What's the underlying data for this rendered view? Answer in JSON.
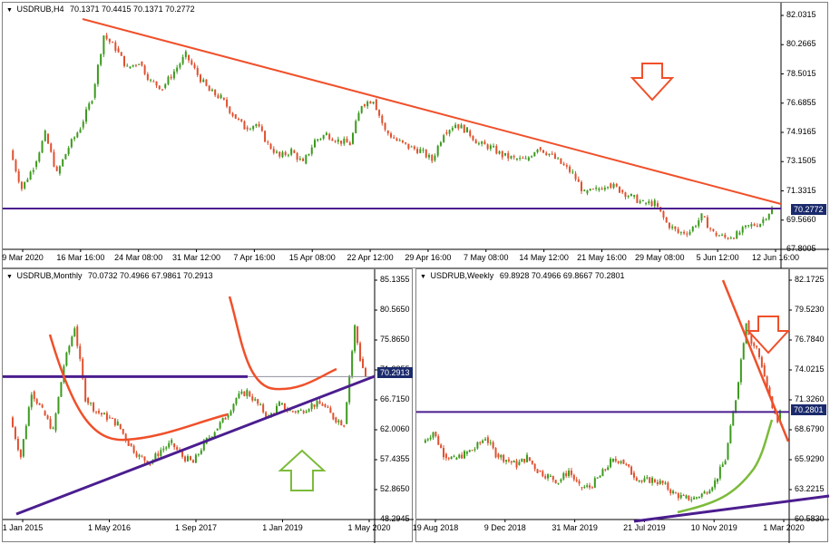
{
  "colors": {
    "bull": "#3c9a1e",
    "bear": "#e0502f",
    "trend": "#f0502a",
    "level": "#4b1d8f",
    "support": "#4b1d8f",
    "curve": "#f0502a",
    "green_curve": "#7cbb3a",
    "arrow_down": "#f0502a",
    "arrow_up": "#7cbb3a",
    "tag_bg": "#1a2a6c"
  },
  "charts": {
    "h4": {
      "symbol": "USDRUB,H4",
      "ohlc": "70.1371 70.4415 70.1371 70.2772",
      "current": "70.2772",
      "y_ticks": [
        "82.0315",
        "80.2665",
        "78.5015",
        "76.6855",
        "74.9165",
        "73.1505",
        "71.3315",
        "69.5660",
        "67.8005"
      ],
      "x_ticks": [
        "9 Mar 2020",
        "16 Mar 16:00",
        "24 Mar 08:00",
        "31 Mar 12:00",
        "7 Apr 16:00",
        "15 Apr 08:00",
        "22 Apr 12:00",
        "29 Apr 16:00",
        "7 May 08:00",
        "14 May 12:00",
        "21 May 16:00",
        "29 May 08:00",
        "5 Jun 12:00",
        "12 Jun 16:00"
      ]
    },
    "monthly": {
      "symbol": "USDRUB,Monthly",
      "ohlc": "70.0732 70.4966 67.9861 70.2913",
      "current": "70.2913",
      "y_ticks": [
        "85.1355",
        "80.5650",
        "75.8650",
        "71.2855",
        "66.7150",
        "62.0060",
        "57.4355",
        "52.8650",
        "48.2945"
      ],
      "x_ticks": [
        "1 Jan 2015",
        "1 May 2016",
        "1 Sep 2017",
        "1 Jan 2019",
        "1 May 2020"
      ]
    },
    "weekly": {
      "symbol": "USDRUB,Weekly",
      "ohlc": "69.8928 70.4966 69.8667 70.2801",
      "current": "70.2801",
      "y_ticks": [
        "82.1725",
        "79.5230",
        "76.7840",
        "74.0215",
        "71.3260",
        "68.6790",
        "65.9290",
        "63.2215",
        "60.5830"
      ],
      "x_ticks": [
        "19 Aug 2018",
        "9 Dec 2018",
        "31 Mar 2019",
        "21 Jul 2019",
        "10 Nov 2019",
        "1 Mar 2020"
      ]
    }
  },
  "chart_data": [
    {
      "type": "candlestick",
      "title": "USDRUB,H4",
      "ylim": [
        67.8,
        82.0
      ],
      "x_range": [
        "9 Mar 2020",
        "12 Jun 16:00"
      ],
      "close_path": [
        [
          0,
          73.8
        ],
        [
          4,
          71.5
        ],
        [
          8,
          72.8
        ],
        [
          12,
          74.8
        ],
        [
          16,
          72.4
        ],
        [
          20,
          74.0
        ],
        [
          24,
          75.2
        ],
        [
          28,
          77.0
        ],
        [
          32,
          80.8
        ],
        [
          36,
          80.0
        ],
        [
          40,
          78.8
        ],
        [
          44,
          79.2
        ],
        [
          48,
          78.0
        ],
        [
          52,
          77.6
        ],
        [
          56,
          78.6
        ],
        [
          60,
          79.6
        ],
        [
          64,
          78.4
        ],
        [
          68,
          77.4
        ],
        [
          72,
          77.0
        ],
        [
          76,
          76.0
        ],
        [
          80,
          75.2
        ],
        [
          84,
          75.4
        ],
        [
          88,
          74.2
        ],
        [
          92,
          73.4
        ],
        [
          96,
          73.8
        ],
        [
          100,
          73.0
        ],
        [
          104,
          74.4
        ],
        [
          108,
          74.8
        ],
        [
          112,
          74.4
        ],
        [
          116,
          74.2
        ],
        [
          120,
          76.6
        ],
        [
          124,
          76.9
        ],
        [
          128,
          75.0
        ],
        [
          132,
          74.4
        ],
        [
          136,
          74.0
        ],
        [
          140,
          73.8
        ],
        [
          144,
          73.2
        ],
        [
          148,
          74.9
        ],
        [
          152,
          75.4
        ],
        [
          156,
          75.0
        ],
        [
          160,
          74.2
        ],
        [
          164,
          74.0
        ],
        [
          168,
          73.5
        ],
        [
          172,
          73.3
        ],
        [
          176,
          73.2
        ],
        [
          180,
          74.0
        ],
        [
          184,
          73.6
        ],
        [
          188,
          73.0
        ],
        [
          192,
          72.4
        ],
        [
          196,
          71.2
        ],
        [
          200,
          71.4
        ],
        [
          204,
          71.8
        ],
        [
          208,
          71.4
        ],
        [
          212,
          71.0
        ],
        [
          216,
          70.6
        ],
        [
          220,
          70.6
        ],
        [
          224,
          69.4
        ],
        [
          228,
          68.8
        ],
        [
          232,
          68.9
        ],
        [
          236,
          69.8
        ],
        [
          240,
          68.8
        ],
        [
          244,
          68.5
        ],
        [
          248,
          68.7
        ],
        [
          252,
          69.2
        ],
        [
          256,
          69.4
        ],
        [
          260,
          70.28
        ]
      ],
      "annotations": [
        "descending trendline",
        "horizontal level at 70.2772",
        "red down arrow"
      ]
    },
    {
      "type": "candlestick",
      "title": "USDRUB,Monthly",
      "ylim": [
        48.2945,
        85.1355
      ],
      "x_range": [
        "1 Jan 2015",
        "1 May 2020"
      ],
      "close_path": [
        [
          0,
          64
        ],
        [
          2,
          58
        ],
        [
          4,
          68
        ],
        [
          6,
          65
        ],
        [
          8,
          62
        ],
        [
          10,
          72
        ],
        [
          12,
          78
        ],
        [
          14,
          67
        ],
        [
          16,
          65
        ],
        [
          18,
          64
        ],
        [
          20,
          63
        ],
        [
          22,
          60
        ],
        [
          24,
          58
        ],
        [
          26,
          57
        ],
        [
          28,
          59
        ],
        [
          30,
          60
        ],
        [
          32,
          58
        ],
        [
          34,
          57
        ],
        [
          36,
          60
        ],
        [
          38,
          62
        ],
        [
          40,
          64
        ],
        [
          42,
          67
        ],
        [
          44,
          68
        ],
        [
          46,
          66
        ],
        [
          48,
          64
        ],
        [
          50,
          66
        ],
        [
          52,
          65
        ],
        [
          54,
          65
        ],
        [
          56,
          66
        ],
        [
          58,
          66
        ],
        [
          60,
          64
        ],
        [
          62,
          63
        ],
        [
          64,
          78
        ],
        [
          65,
          73
        ],
        [
          66,
          70.29
        ]
      ],
      "annotations": [
        "rising support line",
        "horizontal level at 70.2913",
        "rounding curve",
        "green up arrow"
      ]
    },
    {
      "type": "candlestick",
      "title": "USDRUB,Weekly",
      "ylim": [
        60.583,
        82.1725
      ],
      "x_range": [
        "19 Aug 2018",
        "1 Mar 2020"
      ],
      "close_path": [
        [
          0,
          67.5
        ],
        [
          4,
          68.5
        ],
        [
          8,
          66.5
        ],
        [
          12,
          66.0
        ],
        [
          16,
          66.5
        ],
        [
          20,
          67.0
        ],
        [
          24,
          68.0
        ],
        [
          28,
          66.5
        ],
        [
          32,
          66.0
        ],
        [
          36,
          65.5
        ],
        [
          40,
          66.2
        ],
        [
          44,
          65.0
        ],
        [
          48,
          64.5
        ],
        [
          52,
          64.0
        ],
        [
          56,
          65.0
        ],
        [
          60,
          63.5
        ],
        [
          64,
          63.5
        ],
        [
          68,
          64.5
        ],
        [
          72,
          65.8
        ],
        [
          76,
          66.0
        ],
        [
          80,
          64.8
        ],
        [
          84,
          64.0
        ],
        [
          88,
          64.2
        ],
        [
          92,
          63.8
        ],
        [
          96,
          63.0
        ],
        [
          100,
          62.5
        ],
        [
          104,
          62.5
        ],
        [
          108,
          63.0
        ],
        [
          112,
          64.0
        ],
        [
          116,
          66.0
        ],
        [
          120,
          71.5
        ],
        [
          124,
          78.5
        ],
        [
          126,
          76.5
        ],
        [
          128,
          76.0
        ],
        [
          130,
          74.5
        ],
        [
          132,
          72.5
        ],
        [
          134,
          70.5
        ],
        [
          136,
          69.5
        ],
        [
          137,
          70.28
        ]
      ],
      "annotations": [
        "falling trendline",
        "horizontal level at 70.2801",
        "green parabolic curve",
        "red down arrow"
      ]
    }
  ]
}
